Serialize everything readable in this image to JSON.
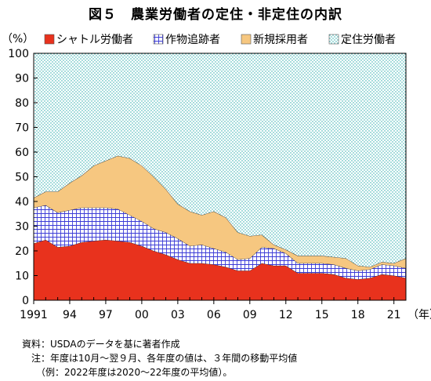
{
  "title": "図５　農業労働者の定住・非定住の内訳",
  "chart_data": {
    "type": "area",
    "stacked": true,
    "percent": true,
    "ylabel": "（%）",
    "xlabel": "（年）",
    "ylim": [
      0,
      100
    ],
    "yticks": [
      "0",
      "10",
      "20",
      "30",
      "40",
      "50",
      "60",
      "70",
      "80",
      "90",
      "100"
    ],
    "xticks": [
      {
        "label": "1991",
        "year": 1991
      },
      {
        "label": "94",
        "year": 1994
      },
      {
        "label": "97",
        "year": 1997
      },
      {
        "label": "00",
        "year": 2000
      },
      {
        "label": "03",
        "year": 2003
      },
      {
        "label": "06",
        "year": 2006
      },
      {
        "label": "09",
        "year": 2009
      },
      {
        "label": "12",
        "year": 2012
      },
      {
        "label": "15",
        "year": 2015
      },
      {
        "label": "18",
        "year": 2018
      },
      {
        "label": "21",
        "year": 2021
      }
    ],
    "x": [
      1991,
      1992,
      1993,
      1994,
      1995,
      1996,
      1997,
      1998,
      1999,
      2000,
      2001,
      2002,
      2003,
      2004,
      2005,
      2006,
      2007,
      2008,
      2009,
      2010,
      2011,
      2012,
      2013,
      2014,
      2015,
      2016,
      2017,
      2018,
      2019,
      2020,
      2021,
      2022
    ],
    "legend_position": "top",
    "series": [
      {
        "name": "シャトル労働者",
        "color": "#e8321d",
        "pattern": "solid",
        "values": [
          23,
          24.5,
          21.5,
          22,
          23.5,
          24,
          24.5,
          24,
          23.5,
          22,
          20,
          18.5,
          16.5,
          15,
          15,
          14.5,
          13.5,
          12,
          12,
          15,
          14,
          14,
          11,
          11,
          11,
          10.5,
          9,
          8.5,
          9,
          10.5,
          10,
          9
        ]
      },
      {
        "name": "作物追跡者",
        "color": "#3a3ad6",
        "pattern": "hatch",
        "values": [
          14.5,
          14,
          14,
          14.5,
          14,
          13.5,
          13,
          13,
          11,
          10,
          9,
          9,
          8.5,
          7,
          7.5,
          6.5,
          6,
          4.5,
          5,
          6.5,
          7,
          5,
          4,
          4,
          4,
          4,
          4,
          3.5,
          3.5,
          4,
          4,
          4
        ]
      },
      {
        "name": "新規採用者",
        "color": "#f6c780",
        "pattern": "solid",
        "values": [
          4,
          5.5,
          8.5,
          11,
          13,
          17,
          19,
          21.5,
          23,
          22.5,
          21,
          17.5,
          14,
          14,
          12,
          15,
          14,
          11,
          9,
          5,
          1.5,
          1.5,
          3,
          3,
          3,
          3,
          4,
          2,
          1,
          1,
          1,
          4
        ]
      },
      {
        "name": "定住労働者",
        "color": "#22a9a9",
        "pattern": "dots",
        "values": [
          58.5,
          56,
          56,
          52.5,
          49.5,
          45.5,
          43.5,
          41.5,
          42.5,
          45.5,
          50,
          55,
          61,
          64,
          65.5,
          64,
          66.5,
          72.5,
          74,
          73.5,
          77.5,
          79.5,
          82,
          82,
          82,
          82.5,
          83,
          86,
          86.5,
          84.5,
          85,
          83
        ]
      }
    ]
  },
  "notes": [
    "資料：USDAのデータを基に著者作成",
    "　注：年度は10月～翌９月、各年度の値は、３年間の移動平均値",
    "　　（例：2022年度は2020～22年度の平均値）。"
  ]
}
